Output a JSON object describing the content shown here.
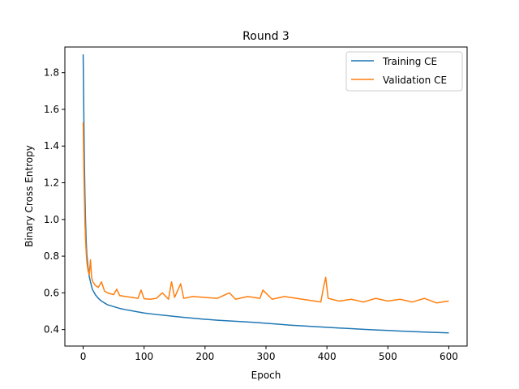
{
  "chart_data": {
    "type": "line",
    "title": "Round 3",
    "xlabel": "Epoch",
    "ylabel": "Binary Cross Entropy",
    "xlim": [
      -30,
      630
    ],
    "ylim": [
      0.31,
      1.94
    ],
    "x_ticks": [
      0,
      100,
      200,
      300,
      400,
      500,
      600
    ],
    "y_ticks": [
      0.4,
      0.6,
      0.8,
      1.0,
      1.2,
      1.4,
      1.6,
      1.8
    ],
    "x_tick_labels": [
      "0",
      "100",
      "200",
      "300",
      "400",
      "500",
      "600"
    ],
    "y_tick_labels": [
      "0.4",
      "0.6",
      "0.8",
      "1.0",
      "1.2",
      "1.4",
      "1.6",
      "1.8"
    ],
    "grid": false,
    "legend_position": "top-right",
    "series": [
      {
        "name": "Training CE",
        "color": "#1f77b4",
        "points": [
          [
            0,
            1.9
          ],
          [
            1,
            1.6
          ],
          [
            2,
            1.32
          ],
          [
            3,
            1.12
          ],
          [
            4,
            0.98
          ],
          [
            5,
            0.88
          ],
          [
            6,
            0.81
          ],
          [
            8,
            0.74
          ],
          [
            10,
            0.69
          ],
          [
            12,
            0.66
          ],
          [
            15,
            0.62
          ],
          [
            20,
            0.59
          ],
          [
            25,
            0.57
          ],
          [
            30,
            0.555
          ],
          [
            40,
            0.535
          ],
          [
            50,
            0.525
          ],
          [
            60,
            0.515
          ],
          [
            70,
            0.508
          ],
          [
            80,
            0.502
          ],
          [
            90,
            0.496
          ],
          [
            100,
            0.49
          ],
          [
            120,
            0.482
          ],
          [
            140,
            0.475
          ],
          [
            160,
            0.468
          ],
          [
            180,
            0.462
          ],
          [
            200,
            0.456
          ],
          [
            220,
            0.451
          ],
          [
            240,
            0.447
          ],
          [
            260,
            0.443
          ],
          [
            280,
            0.439
          ],
          [
            300,
            0.434
          ],
          [
            320,
            0.429
          ],
          [
            340,
            0.424
          ],
          [
            360,
            0.42
          ],
          [
            380,
            0.416
          ],
          [
            400,
            0.412
          ],
          [
            420,
            0.408
          ],
          [
            440,
            0.405
          ],
          [
            460,
            0.401
          ],
          [
            480,
            0.398
          ],
          [
            500,
            0.395
          ],
          [
            520,
            0.392
          ],
          [
            540,
            0.389
          ],
          [
            560,
            0.386
          ],
          [
            580,
            0.384
          ],
          [
            600,
            0.382
          ]
        ]
      },
      {
        "name": "Validation CE",
        "color": "#ff7f0e",
        "points": [
          [
            0,
            1.53
          ],
          [
            1,
            1.3
          ],
          [
            2,
            1.12
          ],
          [
            3,
            0.98
          ],
          [
            4,
            0.88
          ],
          [
            5,
            0.82
          ],
          [
            6,
            0.77
          ],
          [
            8,
            0.72
          ],
          [
            10,
            0.7
          ],
          [
            12,
            0.78
          ],
          [
            14,
            0.68
          ],
          [
            16,
            0.66
          ],
          [
            20,
            0.64
          ],
          [
            25,
            0.63
          ],
          [
            30,
            0.66
          ],
          [
            35,
            0.61
          ],
          [
            40,
            0.6
          ],
          [
            50,
            0.59
          ],
          [
            55,
            0.62
          ],
          [
            60,
            0.585
          ],
          [
            70,
            0.58
          ],
          [
            80,
            0.575
          ],
          [
            90,
            0.57
          ],
          [
            95,
            0.615
          ],
          [
            100,
            0.568
          ],
          [
            110,
            0.565
          ],
          [
            120,
            0.57
          ],
          [
            130,
            0.6
          ],
          [
            140,
            0.565
          ],
          [
            145,
            0.66
          ],
          [
            150,
            0.575
          ],
          [
            160,
            0.65
          ],
          [
            165,
            0.57
          ],
          [
            180,
            0.58
          ],
          [
            200,
            0.575
          ],
          [
            220,
            0.57
          ],
          [
            240,
            0.6
          ],
          [
            250,
            0.565
          ],
          [
            270,
            0.58
          ],
          [
            290,
            0.57
          ],
          [
            295,
            0.615
          ],
          [
            310,
            0.565
          ],
          [
            330,
            0.58
          ],
          [
            350,
            0.57
          ],
          [
            370,
            0.56
          ],
          [
            390,
            0.55
          ],
          [
            395,
            0.64
          ],
          [
            398,
            0.685
          ],
          [
            402,
            0.57
          ],
          [
            420,
            0.555
          ],
          [
            440,
            0.565
          ],
          [
            460,
            0.55
          ],
          [
            480,
            0.57
          ],
          [
            500,
            0.555
          ],
          [
            520,
            0.565
          ],
          [
            540,
            0.55
          ],
          [
            560,
            0.57
          ],
          [
            580,
            0.545
          ],
          [
            600,
            0.555
          ]
        ]
      }
    ]
  }
}
